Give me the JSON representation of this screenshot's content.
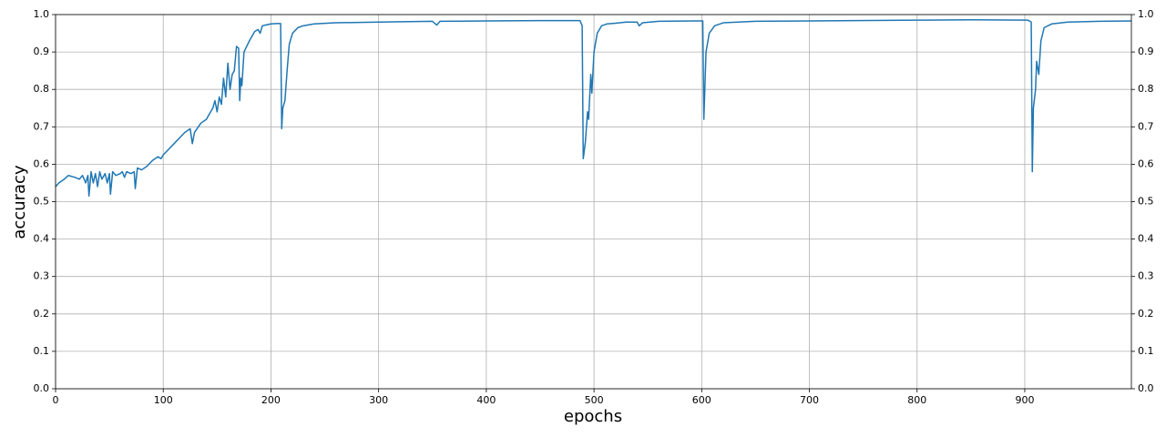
{
  "chart_data": {
    "type": "line",
    "xlabel": "epochs",
    "ylabel": "accuracy",
    "color": "#1f77b4",
    "grid": true,
    "xlim": [
      0,
      999
    ],
    "ylim": [
      0,
      1
    ],
    "xticks": [
      0,
      100,
      200,
      300,
      400,
      500,
      600,
      700,
      800,
      900
    ],
    "yticks": [
      {
        "value": 0,
        "label": "0.0"
      },
      0.1,
      0.2,
      0.3,
      0.4,
      0.5,
      0.6,
      0.7,
      0.8,
      0.9,
      {
        "value": 1,
        "label": "1.0"
      }
    ],
    "x": [
      0,
      3,
      8,
      12,
      18,
      22,
      25,
      28,
      30,
      31,
      33,
      35,
      37,
      39,
      41,
      43,
      46,
      48,
      50,
      51,
      53,
      56,
      60,
      62,
      64,
      66,
      70,
      73,
      74,
      76,
      80,
      85,
      90,
      95,
      98,
      100,
      105,
      110,
      115,
      120,
      125,
      127,
      129,
      135,
      140,
      143,
      146,
      148,
      150,
      152,
      154,
      156,
      158,
      160,
      162,
      164,
      166,
      168,
      170,
      171,
      172,
      173,
      175,
      180,
      185,
      188,
      190,
      192,
      195,
      200,
      205,
      209,
      210,
      211,
      213,
      215,
      217,
      220,
      225,
      230,
      240,
      260,
      300,
      350,
      354,
      357,
      400,
      450,
      487,
      489,
      490,
      492,
      494,
      495,
      497,
      498,
      500,
      503,
      507,
      512,
      520,
      530,
      540,
      542,
      545,
      560,
      600,
      601,
      602,
      604,
      607,
      612,
      620,
      650,
      700,
      800,
      850,
      903,
      906,
      907,
      908,
      910,
      911,
      913,
      915,
      918,
      925,
      940,
      970,
      999
    ],
    "values": [
      0.54,
      0.55,
      0.56,
      0.57,
      0.565,
      0.56,
      0.57,
      0.55,
      0.57,
      0.515,
      0.58,
      0.55,
      0.575,
      0.54,
      0.58,
      0.56,
      0.575,
      0.55,
      0.575,
      0.52,
      0.58,
      0.57,
      0.575,
      0.58,
      0.565,
      0.58,
      0.575,
      0.58,
      0.535,
      0.59,
      0.585,
      0.595,
      0.61,
      0.62,
      0.615,
      0.625,
      0.64,
      0.655,
      0.67,
      0.685,
      0.695,
      0.655,
      0.685,
      0.71,
      0.72,
      0.735,
      0.75,
      0.77,
      0.74,
      0.78,
      0.76,
      0.83,
      0.78,
      0.87,
      0.8,
      0.84,
      0.85,
      0.915,
      0.91,
      0.77,
      0.83,
      0.81,
      0.9,
      0.93,
      0.955,
      0.96,
      0.95,
      0.97,
      0.972,
      0.975,
      0.976,
      0.976,
      0.695,
      0.75,
      0.77,
      0.85,
      0.92,
      0.95,
      0.965,
      0.97,
      0.975,
      0.978,
      0.98,
      0.982,
      0.972,
      0.982,
      0.983,
      0.984,
      0.984,
      0.97,
      0.615,
      0.66,
      0.74,
      0.72,
      0.84,
      0.79,
      0.9,
      0.95,
      0.97,
      0.975,
      0.977,
      0.98,
      0.98,
      0.97,
      0.978,
      0.982,
      0.983,
      0.983,
      0.72,
      0.9,
      0.95,
      0.97,
      0.978,
      0.982,
      0.983,
      0.985,
      0.986,
      0.985,
      0.98,
      0.58,
      0.75,
      0.8,
      0.875,
      0.84,
      0.93,
      0.965,
      0.975,
      0.98,
      0.982,
      0.983
    ]
  }
}
